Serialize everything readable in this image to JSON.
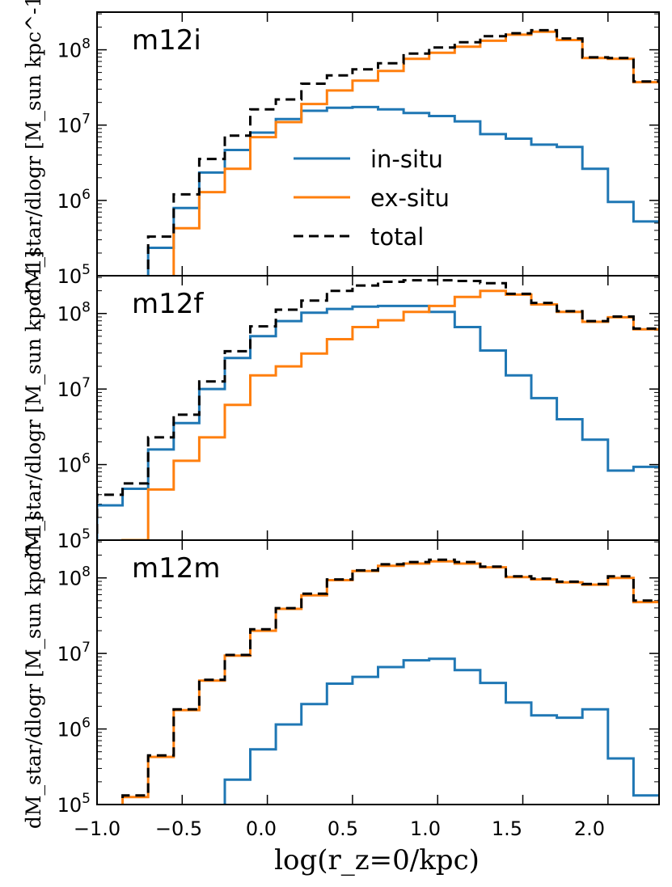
{
  "chart_data": {
    "type": "line",
    "drawstyle": "steps-post",
    "xlabel": "log(r_z=0/kpc)",
    "ylabel": "dM_star/dlogr [M_sun kpc^-1]",
    "xlim": [
      -1.0,
      2.3
    ],
    "ylim_log10": [
      5,
      8.5
    ],
    "x_ticks": [
      -1.0,
      -0.5,
      0.0,
      0.5,
      1.0,
      1.5,
      2.0
    ],
    "x_tick_labels": [
      "−1.0",
      "−0.5",
      "0.0",
      "0.5",
      "1.0",
      "1.5",
      "2.0"
    ],
    "y_ticks": [
      {
        "base": "10",
        "exp": "5"
      },
      {
        "base": "10",
        "exp": "6"
      },
      {
        "base": "10",
        "exp": "7"
      },
      {
        "base": "10",
        "exp": "8"
      }
    ],
    "bin_edges": [
      -1.0,
      -0.85,
      -0.7,
      -0.55,
      -0.4,
      -0.25,
      -0.1,
      0.05,
      0.2,
      0.35,
      0.5,
      0.65,
      0.8,
      0.95,
      1.1,
      1.25,
      1.4,
      1.55,
      1.7,
      1.85,
      2.0,
      2.15,
      2.3
    ],
    "legend": [
      {
        "name": "in-situ",
        "color": "#1f77b4",
        "dash": "solid"
      },
      {
        "name": "ex-situ",
        "color": "#ff7f0e",
        "dash": "solid"
      },
      {
        "name": "total",
        "color": "#000000",
        "dash": "dashed"
      }
    ],
    "panels": [
      {
        "label": "m12i",
        "series": [
          {
            "name": "in-situ",
            "color": "#1f77b4",
            "dash": "solid",
            "log10_values": [
              null,
              null,
              5.37,
              5.9,
              6.37,
              6.67,
              6.9,
              7.08,
              7.19,
              7.23,
              7.24,
              7.21,
              7.16,
              7.12,
              7.05,
              6.88,
              6.82,
              6.74,
              6.71,
              6.42,
              5.98,
              5.72
            ]
          },
          {
            "name": "ex-situ",
            "color": "#ff7f0e",
            "dash": "solid",
            "log10_values": [
              null,
              null,
              null,
              5.63,
              6.11,
              6.42,
              6.84,
              7.04,
              7.28,
              7.46,
              7.59,
              7.72,
              7.88,
              7.96,
              8.04,
              8.12,
              8.2,
              8.24,
              8.13,
              7.89,
              7.88,
              7.57
            ]
          },
          {
            "name": "total",
            "color": "#000000",
            "dash": "dashed",
            "log10_values": [
              null,
              null,
              5.52,
              6.08,
              6.55,
              6.86,
              7.21,
              7.34,
              7.55,
              7.66,
              7.74,
              7.82,
              7.95,
              8.03,
              8.1,
              8.18,
              8.22,
              8.26,
              8.15,
              7.9,
              7.89,
              7.58
            ]
          }
        ]
      },
      {
        "label": "m12f",
        "series": [
          {
            "name": "in-situ",
            "color": "#1f77b4",
            "dash": "solid",
            "log10_values": [
              5.46,
              5.68,
              6.2,
              6.55,
              7.0,
              7.41,
              7.7,
              7.9,
              8.01,
              8.06,
              8.09,
              8.1,
              8.1,
              8.02,
              7.82,
              7.51,
              7.18,
              6.88,
              6.6,
              6.33,
              5.92,
              5.97
            ]
          },
          {
            "name": "ex-situ",
            "color": "#ff7f0e",
            "dash": "solid",
            "log10_values": [
              null,
              5.0,
              5.67,
              6.05,
              6.36,
              6.79,
              7.18,
              7.3,
              7.47,
              7.66,
              7.82,
              7.91,
              8.02,
              8.1,
              8.22,
              8.3,
              8.25,
              8.12,
              8.02,
              7.89,
              7.95,
              7.79
            ]
          },
          {
            "name": "total",
            "color": "#000000",
            "dash": "dashed",
            "log10_values": [
              5.6,
              5.75,
              6.36,
              6.66,
              7.1,
              7.5,
              7.83,
              8.05,
              8.17,
              8.3,
              8.37,
              8.42,
              8.44,
              8.44,
              8.43,
              8.4,
              8.26,
              8.14,
              8.03,
              7.9,
              7.96,
              7.8
            ]
          }
        ]
      },
      {
        "label": "m12m",
        "series": [
          {
            "name": "in-situ",
            "color": "#1f77b4",
            "dash": "solid",
            "log10_values": [
              null,
              null,
              null,
              null,
              null,
              5.33,
              5.73,
              6.06,
              6.33,
              6.6,
              6.69,
              6.82,
              6.91,
              6.93,
              6.78,
              6.61,
              6.35,
              6.18,
              6.15,
              6.26,
              5.61,
              5.12
            ]
          },
          {
            "name": "ex-situ",
            "color": "#ff7f0e",
            "dash": "solid",
            "log10_values": [
              null,
              5.1,
              5.63,
              6.25,
              6.64,
              6.97,
              7.3,
              7.59,
              7.77,
              7.97,
              8.09,
              8.16,
              8.19,
              8.22,
              8.19,
              8.14,
              8.01,
              7.98,
              7.94,
              7.91,
              8.0,
              7.68
            ]
          },
          {
            "name": "total",
            "color": "#000000",
            "dash": "dashed",
            "log10_values": [
              null,
              5.12,
              5.65,
              6.26,
              6.65,
              6.98,
              7.32,
              7.6,
              7.79,
              7.98,
              8.1,
              8.18,
              8.21,
              8.24,
              8.21,
              8.15,
              8.02,
              7.99,
              7.95,
              7.92,
              8.02,
              7.7
            ]
          }
        ]
      }
    ]
  }
}
